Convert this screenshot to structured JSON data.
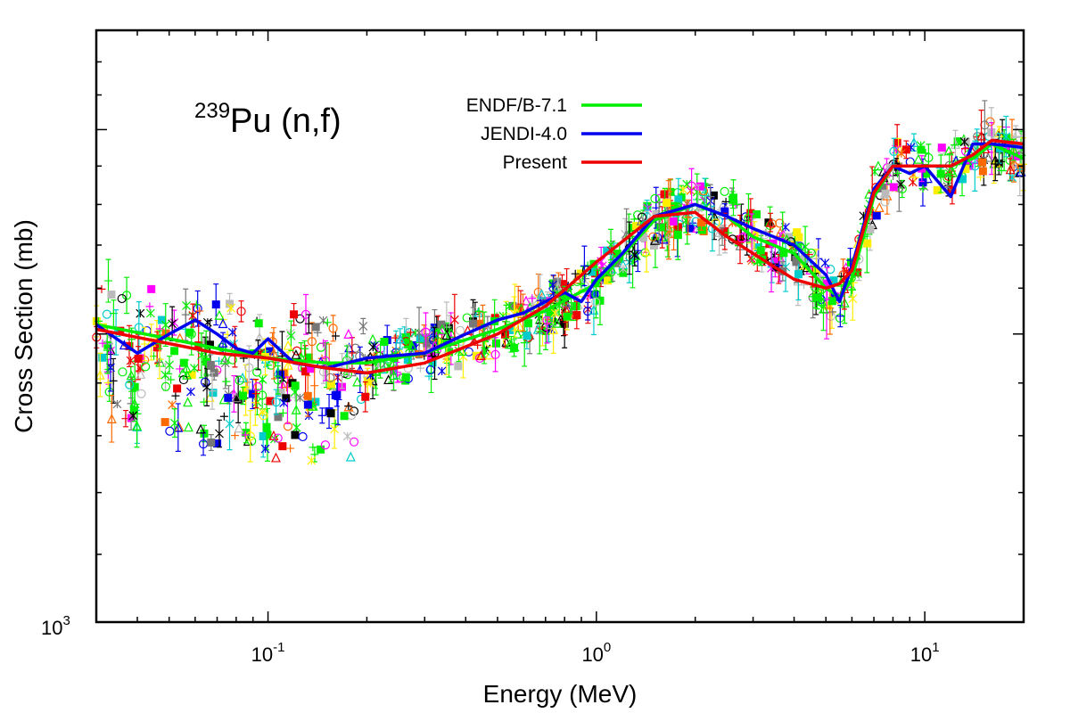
{
  "chart_data": {
    "type": "line",
    "title": {
      "superscript": "239",
      "text": "Pu (n,f)"
    },
    "xlabel": "Energy (MeV)",
    "ylabel": "Cross Section (mb)",
    "xscale": "log",
    "yscale": "log",
    "xlim": [
      0.03,
      20
    ],
    "ylim": [
      1000,
      2300
    ],
    "x_tick_labels": [
      {
        "value": 0.1,
        "base": "10",
        "exp": "-1"
      },
      {
        "value": 1,
        "base": "10",
        "exp": "0"
      },
      {
        "value": 10,
        "base": "10",
        "exp": "1"
      }
    ],
    "y_tick_labels": [
      {
        "value": 1000,
        "base": "10",
        "exp": "3"
      }
    ],
    "y_unlabeled_major_ticks": [
      1000,
      1500,
      2000
    ],
    "legend_position": "top-center",
    "series": [
      {
        "name": "ENDF/B-7.1",
        "color": "#00ee00",
        "x": [
          0.03,
          0.05,
          0.07,
          0.1,
          0.15,
          0.2,
          0.3,
          0.5,
          0.7,
          1.0,
          1.5,
          2.0,
          2.5,
          3.0,
          4.0,
          5.0,
          5.5,
          6.0,
          7.0,
          8.0,
          10.0,
          12.0,
          14.0,
          16.0,
          20.0
        ],
        "y": [
          1520,
          1490,
          1470,
          1450,
          1440,
          1440,
          1460,
          1510,
          1550,
          1610,
          1760,
          1800,
          1770,
          1720,
          1680,
          1600,
          1580,
          1620,
          1820,
          1900,
          1900,
          1900,
          1920,
          1960,
          1920
        ]
      },
      {
        "name": "JENDI-4.0",
        "color": "#0000ee",
        "x": [
          0.03,
          0.04,
          0.05,
          0.06,
          0.07,
          0.08,
          0.09,
          0.1,
          0.12,
          0.15,
          0.2,
          0.3,
          0.4,
          0.5,
          0.6,
          0.7,
          0.8,
          0.9,
          1.0,
          1.2,
          1.5,
          2.0,
          2.5,
          3.0,
          4.0,
          5.0,
          5.5,
          6.0,
          7.0,
          8.0,
          9.0,
          10.0,
          12.0,
          14.0,
          16.0,
          20.0
        ],
        "y": [
          1520,
          1460,
          1500,
          1530,
          1500,
          1470,
          1460,
          1490,
          1440,
          1430,
          1450,
          1460,
          1500,
          1530,
          1545,
          1570,
          1590,
          1570,
          1620,
          1680,
          1770,
          1800,
          1770,
          1740,
          1700,
          1630,
          1570,
          1650,
          1840,
          1900,
          1880,
          1900,
          1820,
          1960,
          1960,
          1950
        ]
      },
      {
        "name": "Present",
        "color": "#ee0000",
        "x": [
          0.03,
          0.05,
          0.07,
          0.1,
          0.15,
          0.2,
          0.3,
          0.5,
          0.7,
          1.0,
          1.5,
          2.0,
          2.5,
          3.0,
          4.0,
          5.0,
          5.5,
          6.0,
          7.0,
          8.0,
          10.0,
          12.0,
          14.0,
          16.0,
          20.0
        ],
        "y": [
          1510,
          1480,
          1460,
          1450,
          1430,
          1420,
          1440,
          1500,
          1560,
          1660,
          1770,
          1780,
          1720,
          1680,
          1620,
          1600,
          1610,
          1640,
          1830,
          1900,
          1900,
          1900,
          1930,
          1970,
          1960
        ]
      }
    ]
  }
}
